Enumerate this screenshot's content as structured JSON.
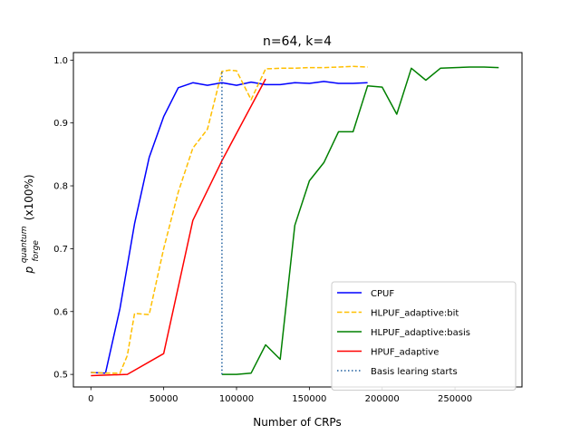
{
  "chart_data": {
    "type": "line",
    "title": "n=64, k=4",
    "xlabel": "Number of CRPs",
    "ylabel": {
      "symbol": "p",
      "superscript": "quantum",
      "subscript": "forge",
      "suffix": "(x100%)"
    },
    "xlim": [
      -12000,
      296000
    ],
    "ylim": [
      0.48,
      1.012
    ],
    "xticks": [
      0,
      50000,
      100000,
      150000,
      200000,
      250000
    ],
    "xtick_labels": [
      "0",
      "50000",
      "100000",
      "150000",
      "200000",
      "250000"
    ],
    "yticks": [
      0.5,
      0.6,
      0.7,
      0.8,
      0.9,
      1.0
    ],
    "ytick_labels": [
      "0.5",
      "0.6",
      "0.7",
      "0.8",
      "0.9",
      "1.0"
    ],
    "grid": false,
    "legend_position": "lower-right",
    "series": [
      {
        "name": "CPUF",
        "color": "#0000ff",
        "style": "solid",
        "x": [
          0,
          10000,
          20000,
          30000,
          40000,
          50000,
          60000,
          70000,
          80000,
          90000,
          100000,
          110000,
          120000,
          130000,
          140000,
          150000,
          160000,
          170000,
          180000,
          190000
        ],
        "y": [
          0.503,
          0.502,
          0.605,
          0.74,
          0.845,
          0.91,
          0.956,
          0.964,
          0.96,
          0.964,
          0.96,
          0.965,
          0.961,
          0.961,
          0.964,
          0.963,
          0.966,
          0.963,
          0.963,
          0.964
        ]
      },
      {
        "name": "HLPUF_adaptive:bit",
        "color": "#ffbf00",
        "style": "dashed",
        "x": [
          0,
          10000,
          20000,
          25000,
          30000,
          40000,
          50000,
          60000,
          70000,
          80000,
          90000,
          95000,
          100000,
          110000,
          120000,
          130000,
          140000,
          150000,
          160000,
          170000,
          180000,
          190000
        ],
        "y": [
          0.503,
          0.502,
          0.502,
          0.53,
          0.597,
          0.595,
          0.7,
          0.79,
          0.86,
          0.89,
          0.982,
          0.984,
          0.983,
          0.937,
          0.986,
          0.987,
          0.987,
          0.988,
          0.988,
          0.989,
          0.99,
          0.989
        ]
      },
      {
        "name": "HLPUF_adaptive:basis",
        "color": "#008000",
        "style": "solid",
        "x": [
          90000,
          100000,
          110000,
          120000,
          130000,
          140000,
          150000,
          160000,
          170000,
          180000,
          190000,
          200000,
          210000,
          220000,
          230000,
          240000,
          250000,
          260000,
          270000,
          280000
        ],
        "y": [
          0.5,
          0.5,
          0.502,
          0.547,
          0.524,
          0.737,
          0.808,
          0.837,
          0.886,
          0.886,
          0.959,
          0.957,
          0.914,
          0.987,
          0.968,
          0.987,
          0.988,
          0.989,
          0.989,
          0.988
        ]
      },
      {
        "name": "HPUF_adaptive",
        "color": "#ff0000",
        "style": "solid",
        "x": [
          0,
          25000,
          50000,
          70000,
          90000,
          120000
        ],
        "y": [
          0.498,
          0.5,
          0.533,
          0.745,
          0.84,
          0.97
        ]
      },
      {
        "name": "Basis learing starts",
        "color": "#1f5f9f",
        "style": "dotted",
        "x": [
          90000,
          90000
        ],
        "y": [
          0.5,
          0.982
        ]
      }
    ]
  }
}
